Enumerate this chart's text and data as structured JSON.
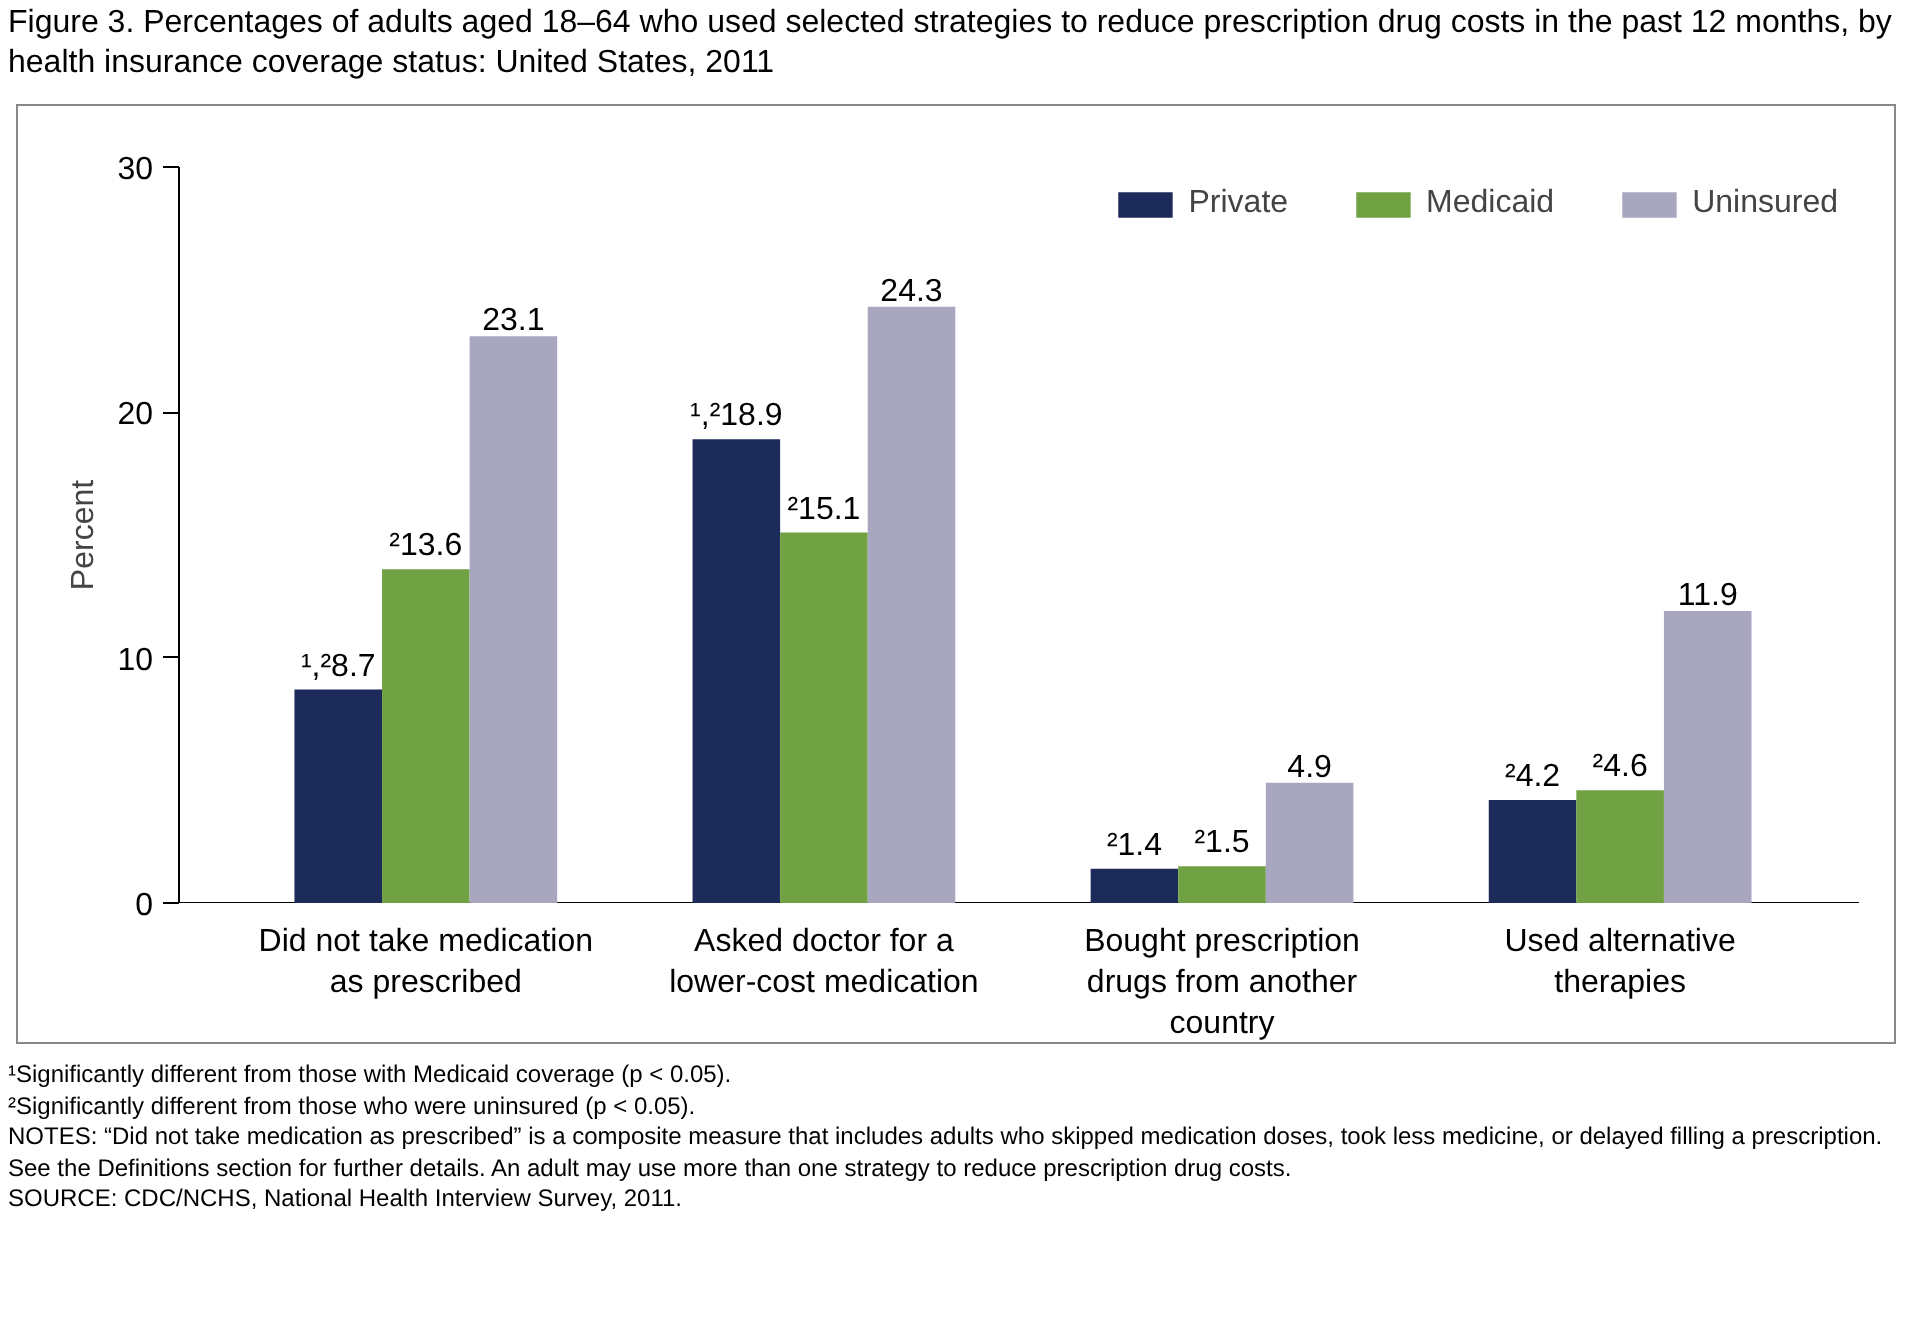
{
  "chart_data": {
    "type": "bar",
    "title": "Figure 3. Percentages of adults aged 18–64 who used selected strategies to reduce prescription drug costs in the past 12 months, by health insurance coverage status: United States, 2011",
    "ylabel": "Percent",
    "categories": [
      "Did not take medication as prescribed",
      "Asked doctor for a lower-cost medication",
      "Bought prescription drugs from another country",
      "Used alternative therapies"
    ],
    "series": [
      {
        "name": "Private",
        "color": "#1c2b59",
        "values": [
          8.7,
          18.9,
          1.4,
          4.2
        ],
        "value_labels": [
          "¹,²8.7",
          "¹,²18.9",
          "²1.4",
          "²4.2"
        ]
      },
      {
        "name": "Medicaid",
        "color": "#70a244",
        "values": [
          13.6,
          15.1,
          1.5,
          4.6
        ],
        "value_labels": [
          "²13.6",
          "²15.1",
          "²1.5",
          "²4.6"
        ]
      },
      {
        "name": "Uninsured",
        "color": "#a9a7bf",
        "values": [
          23.1,
          24.3,
          4.9,
          11.9
        ],
        "value_labels": [
          "23.1",
          "24.3",
          "4.9",
          "11.9"
        ]
      }
    ],
    "ylim": [
      0,
      30
    ],
    "yticks": [
      0,
      10,
      20,
      30
    ],
    "grid": false,
    "legend": "top right",
    "annotations": [
      "¹Significantly different from those with Medicaid coverage (p < 0.05).",
      "²Significantly different from those who were uninsured (p < 0.05).",
      "NOTES: “Did not take medication as prescribed” is a composite measure that includes adults who skipped medication doses, took less medicine, or delayed filling a prescription. See the Definitions section for further details. An adult may use more than one strategy to reduce prescription drug costs.",
      "SOURCE: CDC/NCHS, National Health Interview Survey, 2011."
    ]
  }
}
